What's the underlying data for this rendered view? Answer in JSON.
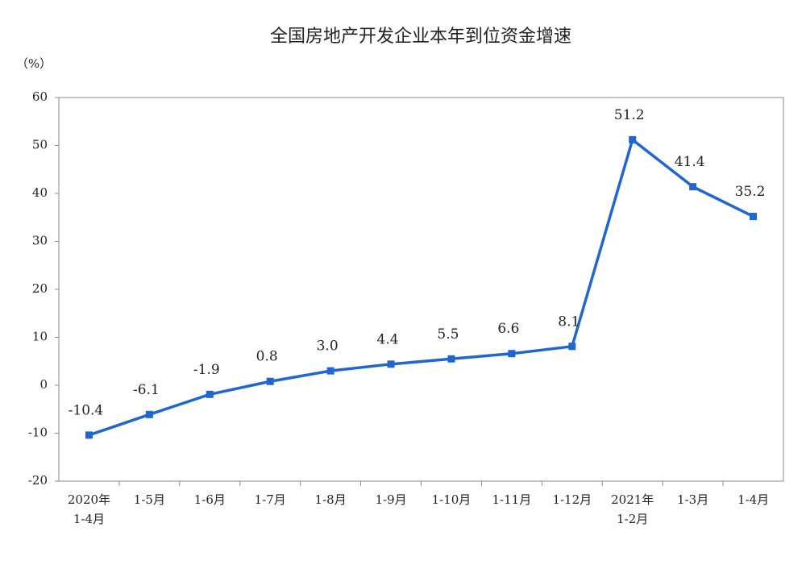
{
  "chart_data": {
    "type": "line",
    "title": "全国房地产开发企业本年到位资金增速",
    "y_label": "（%）",
    "categories": [
      "2020年\n1-4月",
      "1-5月",
      "1-6月",
      "1-7月",
      "1-8月",
      "1-9月",
      "1-10月",
      "1-11月",
      "1-12月",
      "2021年\n1-2月",
      "1-3月",
      "1-4月"
    ],
    "values": [
      -10.4,
      -6.1,
      -1.9,
      0.8,
      3.0,
      4.4,
      5.5,
      6.6,
      8.1,
      51.2,
      41.4,
      35.2
    ],
    "value_labels": [
      "-10.4",
      "-6.1",
      "-1.9",
      "0.8",
      "3.0",
      "4.4",
      "5.5",
      "6.6",
      "8.1",
      "51.2",
      "41.4",
      "35.2"
    ],
    "color": "#1f66d1",
    "ylim": [
      -20,
      60
    ],
    "yticks": [
      -20,
      -10,
      0,
      10,
      20,
      30,
      40,
      50,
      60
    ],
    "grid": false
  }
}
